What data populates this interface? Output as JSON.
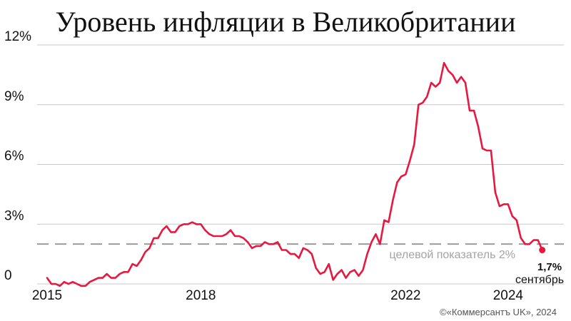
{
  "chart_data": {
    "type": "line",
    "title": "Уровень инфляции в Великобритании",
    "credit": "©«Коммерсантъ UK», 2024",
    "x_ticks": [
      "2015",
      "2018",
      "2022",
      "2024"
    ],
    "y_ticks": [
      "0",
      "3%",
      "6%",
      "9%",
      "12%"
    ],
    "ylim": [
      0,
      12
    ],
    "xlim": [
      "2015-01",
      "2024-09"
    ],
    "grid": true,
    "color": "#e8173f",
    "target": {
      "value": 2,
      "label": "целевой показатель 2%"
    },
    "end_annotation": {
      "value_label": "1,7%",
      "month_label": "сентябрь"
    },
    "series": [
      {
        "x": [
          "2015-01",
          "2015-02",
          "2015-03",
          "2015-04",
          "2015-05",
          "2015-06",
          "2015-07",
          "2015-08",
          "2015-09",
          "2015-10",
          "2015-11",
          "2015-12",
          "2016-01",
          "2016-02",
          "2016-03",
          "2016-04",
          "2016-05",
          "2016-06",
          "2016-07",
          "2016-08",
          "2016-09",
          "2016-10",
          "2016-11",
          "2016-12",
          "2017-01",
          "2017-02",
          "2017-03",
          "2017-04",
          "2017-05",
          "2017-06",
          "2017-07",
          "2017-08",
          "2017-09",
          "2017-10",
          "2017-11",
          "2017-12",
          "2018-01",
          "2018-02",
          "2018-03",
          "2018-04",
          "2018-05",
          "2018-06",
          "2018-07",
          "2018-08",
          "2018-09",
          "2018-10",
          "2018-11",
          "2018-12",
          "2019-01",
          "2019-02",
          "2019-03",
          "2019-04",
          "2019-05",
          "2019-06",
          "2019-07",
          "2019-08",
          "2019-09",
          "2019-10",
          "2019-11",
          "2019-12",
          "2020-01",
          "2020-02",
          "2020-03",
          "2020-04",
          "2020-05",
          "2020-06",
          "2020-07",
          "2020-08",
          "2020-09",
          "2020-10",
          "2020-11",
          "2020-12",
          "2021-01",
          "2021-02",
          "2021-03",
          "2021-04",
          "2021-05",
          "2021-06",
          "2021-07",
          "2021-08",
          "2021-09",
          "2021-10",
          "2021-11",
          "2021-12",
          "2022-01",
          "2022-02",
          "2022-03",
          "2022-04",
          "2022-05",
          "2022-06",
          "2022-07",
          "2022-08",
          "2022-09",
          "2022-10",
          "2022-11",
          "2022-12",
          "2023-01",
          "2023-02",
          "2023-03",
          "2023-04",
          "2023-05",
          "2023-06",
          "2023-07",
          "2023-08",
          "2023-09",
          "2023-10",
          "2023-11",
          "2023-12",
          "2024-01",
          "2024-02",
          "2024-03",
          "2024-04",
          "2024-05",
          "2024-06",
          "2024-07",
          "2024-08",
          "2024-09"
        ],
        "values": [
          0.3,
          0.0,
          0.0,
          -0.1,
          0.1,
          0.0,
          0.1,
          0.0,
          -0.1,
          -0.1,
          0.1,
          0.2,
          0.3,
          0.3,
          0.5,
          0.3,
          0.3,
          0.5,
          0.6,
          0.6,
          1.0,
          0.9,
          1.2,
          1.6,
          1.8,
          2.3,
          2.3,
          2.7,
          2.9,
          2.6,
          2.6,
          2.9,
          3.0,
          3.0,
          3.1,
          3.0,
          3.0,
          2.7,
          2.5,
          2.4,
          2.4,
          2.4,
          2.5,
          2.7,
          2.4,
          2.4,
          2.3,
          2.1,
          1.8,
          1.9,
          1.9,
          2.1,
          2.0,
          2.0,
          2.1,
          1.7,
          1.7,
          1.5,
          1.5,
          1.3,
          1.8,
          1.7,
          1.5,
          0.8,
          0.5,
          0.6,
          1.0,
          0.2,
          0.5,
          0.7,
          0.3,
          0.6,
          0.7,
          0.4,
          0.7,
          1.5,
          2.1,
          2.5,
          2.0,
          3.2,
          3.1,
          4.2,
          5.1,
          5.4,
          5.5,
          6.2,
          7.0,
          9.0,
          9.1,
          9.4,
          10.1,
          9.9,
          10.1,
          11.1,
          10.7,
          10.5,
          10.1,
          10.4,
          10.1,
          8.7,
          8.7,
          7.9,
          6.8,
          6.7,
          6.7,
          4.6,
          3.9,
          4.0,
          4.0,
          3.4,
          3.2,
          2.3,
          2.0,
          2.0,
          2.2,
          2.2,
          1.7
        ]
      }
    ]
  }
}
